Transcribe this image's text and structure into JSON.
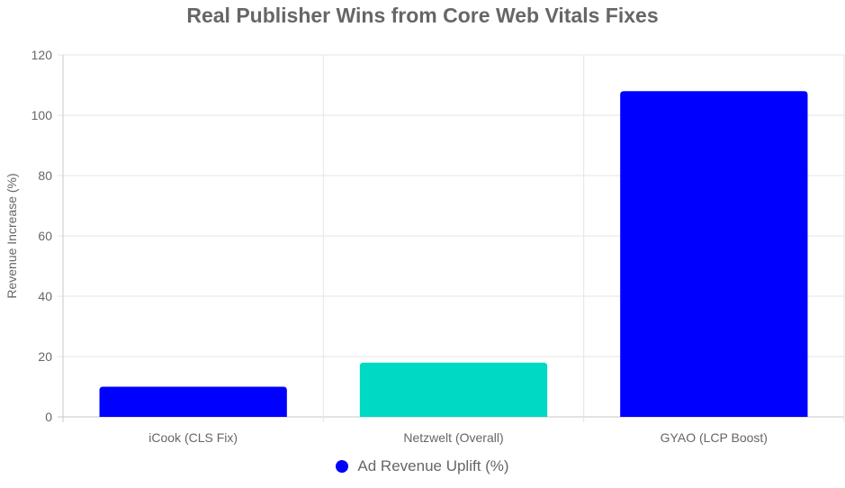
{
  "chart_data": {
    "type": "bar",
    "title": "Real Publisher Wins from Core Web Vitals Fixes",
    "ylabel": "Revenue Increase (%)",
    "xlabel": "",
    "categories": [
      "iCook (CLS Fix)",
      "Netzwelt (Overall)",
      "GYAO (LCP Boost)"
    ],
    "series": [
      {
        "name": "Ad Revenue Uplift (%)",
        "values": [
          10,
          18,
          108
        ],
        "colors": [
          "#0000ff",
          "#00d9c4",
          "#0000ff"
        ]
      }
    ],
    "ylim": [
      0,
      120
    ],
    "yticks": [
      0,
      20,
      40,
      60,
      80,
      100,
      120
    ],
    "grid": true,
    "legend_position": "bottom",
    "legend_color": "#0000ff"
  }
}
